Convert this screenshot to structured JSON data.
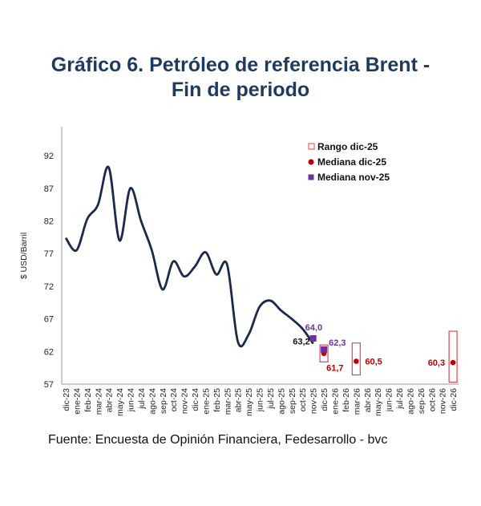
{
  "chart_data": {
    "type": "line",
    "title_line1": "Gráfico 6. Petróleo de referencia Brent -",
    "title_line2": "Fin de periodo",
    "ylabel": "$ USD/Barril",
    "xlabel": "",
    "ylim": [
      57,
      96
    ],
    "yticks": [
      57,
      62,
      67,
      72,
      77,
      82,
      87,
      92
    ],
    "grid": false,
    "legend_position": "top-right",
    "categories": [
      "dic-23",
      "ene-24",
      "feb-24",
      "mar-24",
      "abr-24",
      "may-24",
      "jun-24",
      "jul-24",
      "ago-24",
      "sep-24",
      "oct-24",
      "nov-24",
      "dic-24",
      "ene-25",
      "feb-25",
      "mar-25",
      "abr-25",
      "may-25",
      "jun-25",
      "jul-25",
      "ago-25",
      "sep-25",
      "oct-25",
      "nov-25",
      "dic-25",
      "ene-26",
      "feb-26",
      "mar-26",
      "abr-26",
      "may-26",
      "jun-26",
      "jul-26",
      "ago-26",
      "sep-26",
      "oct-26",
      "nov-26",
      "dic-26"
    ],
    "history": [
      79.4,
      77.5,
      82.3,
      84.5,
      90.2,
      79.0,
      87.0,
      82.0,
      77.5,
      71.5,
      75.8,
      73.5,
      75.0,
      77.2,
      73.8,
      75.3,
      63.5,
      64.6,
      68.8,
      69.8,
      68.3,
      67.0,
      65.5,
      63.2
    ],
    "history_label": {
      "category": "nov-25",
      "value": 63.2,
      "text": "63,2"
    },
    "ranges": [
      {
        "category": "dic-25",
        "low": 60.4,
        "high": 63.0
      },
      {
        "category": "mar-26",
        "low": 58.4,
        "high": 63.3
      },
      {
        "category": "dic-26",
        "low": 57.3,
        "high": 65.1
      }
    ],
    "median_dec25": [
      {
        "category": "dic-25",
        "value": 61.7,
        "text": "61,7"
      },
      {
        "category": "mar-26",
        "value": 60.5,
        "text": "60,5"
      },
      {
        "category": "dic-26",
        "value": 60.3,
        "text": "60,3"
      }
    ],
    "median_nov25": [
      {
        "category": "nov-25",
        "value": 64.0,
        "text": "64,0"
      },
      {
        "category": "dic-25",
        "value": 62.3,
        "text": "62,3"
      }
    ],
    "legend": [
      "Rango dic-25",
      "Mediana dic-25",
      "Mediana nov-25"
    ],
    "colors": {
      "line": "#1b2a4a",
      "range": "#e0474c",
      "median_dec": "#c00000",
      "median_nov": "#7030a0",
      "title": "#1f3a5f"
    }
  },
  "footer": "Fuente: Encuesta de Opinión Financiera, Fedesarrollo - bvc"
}
